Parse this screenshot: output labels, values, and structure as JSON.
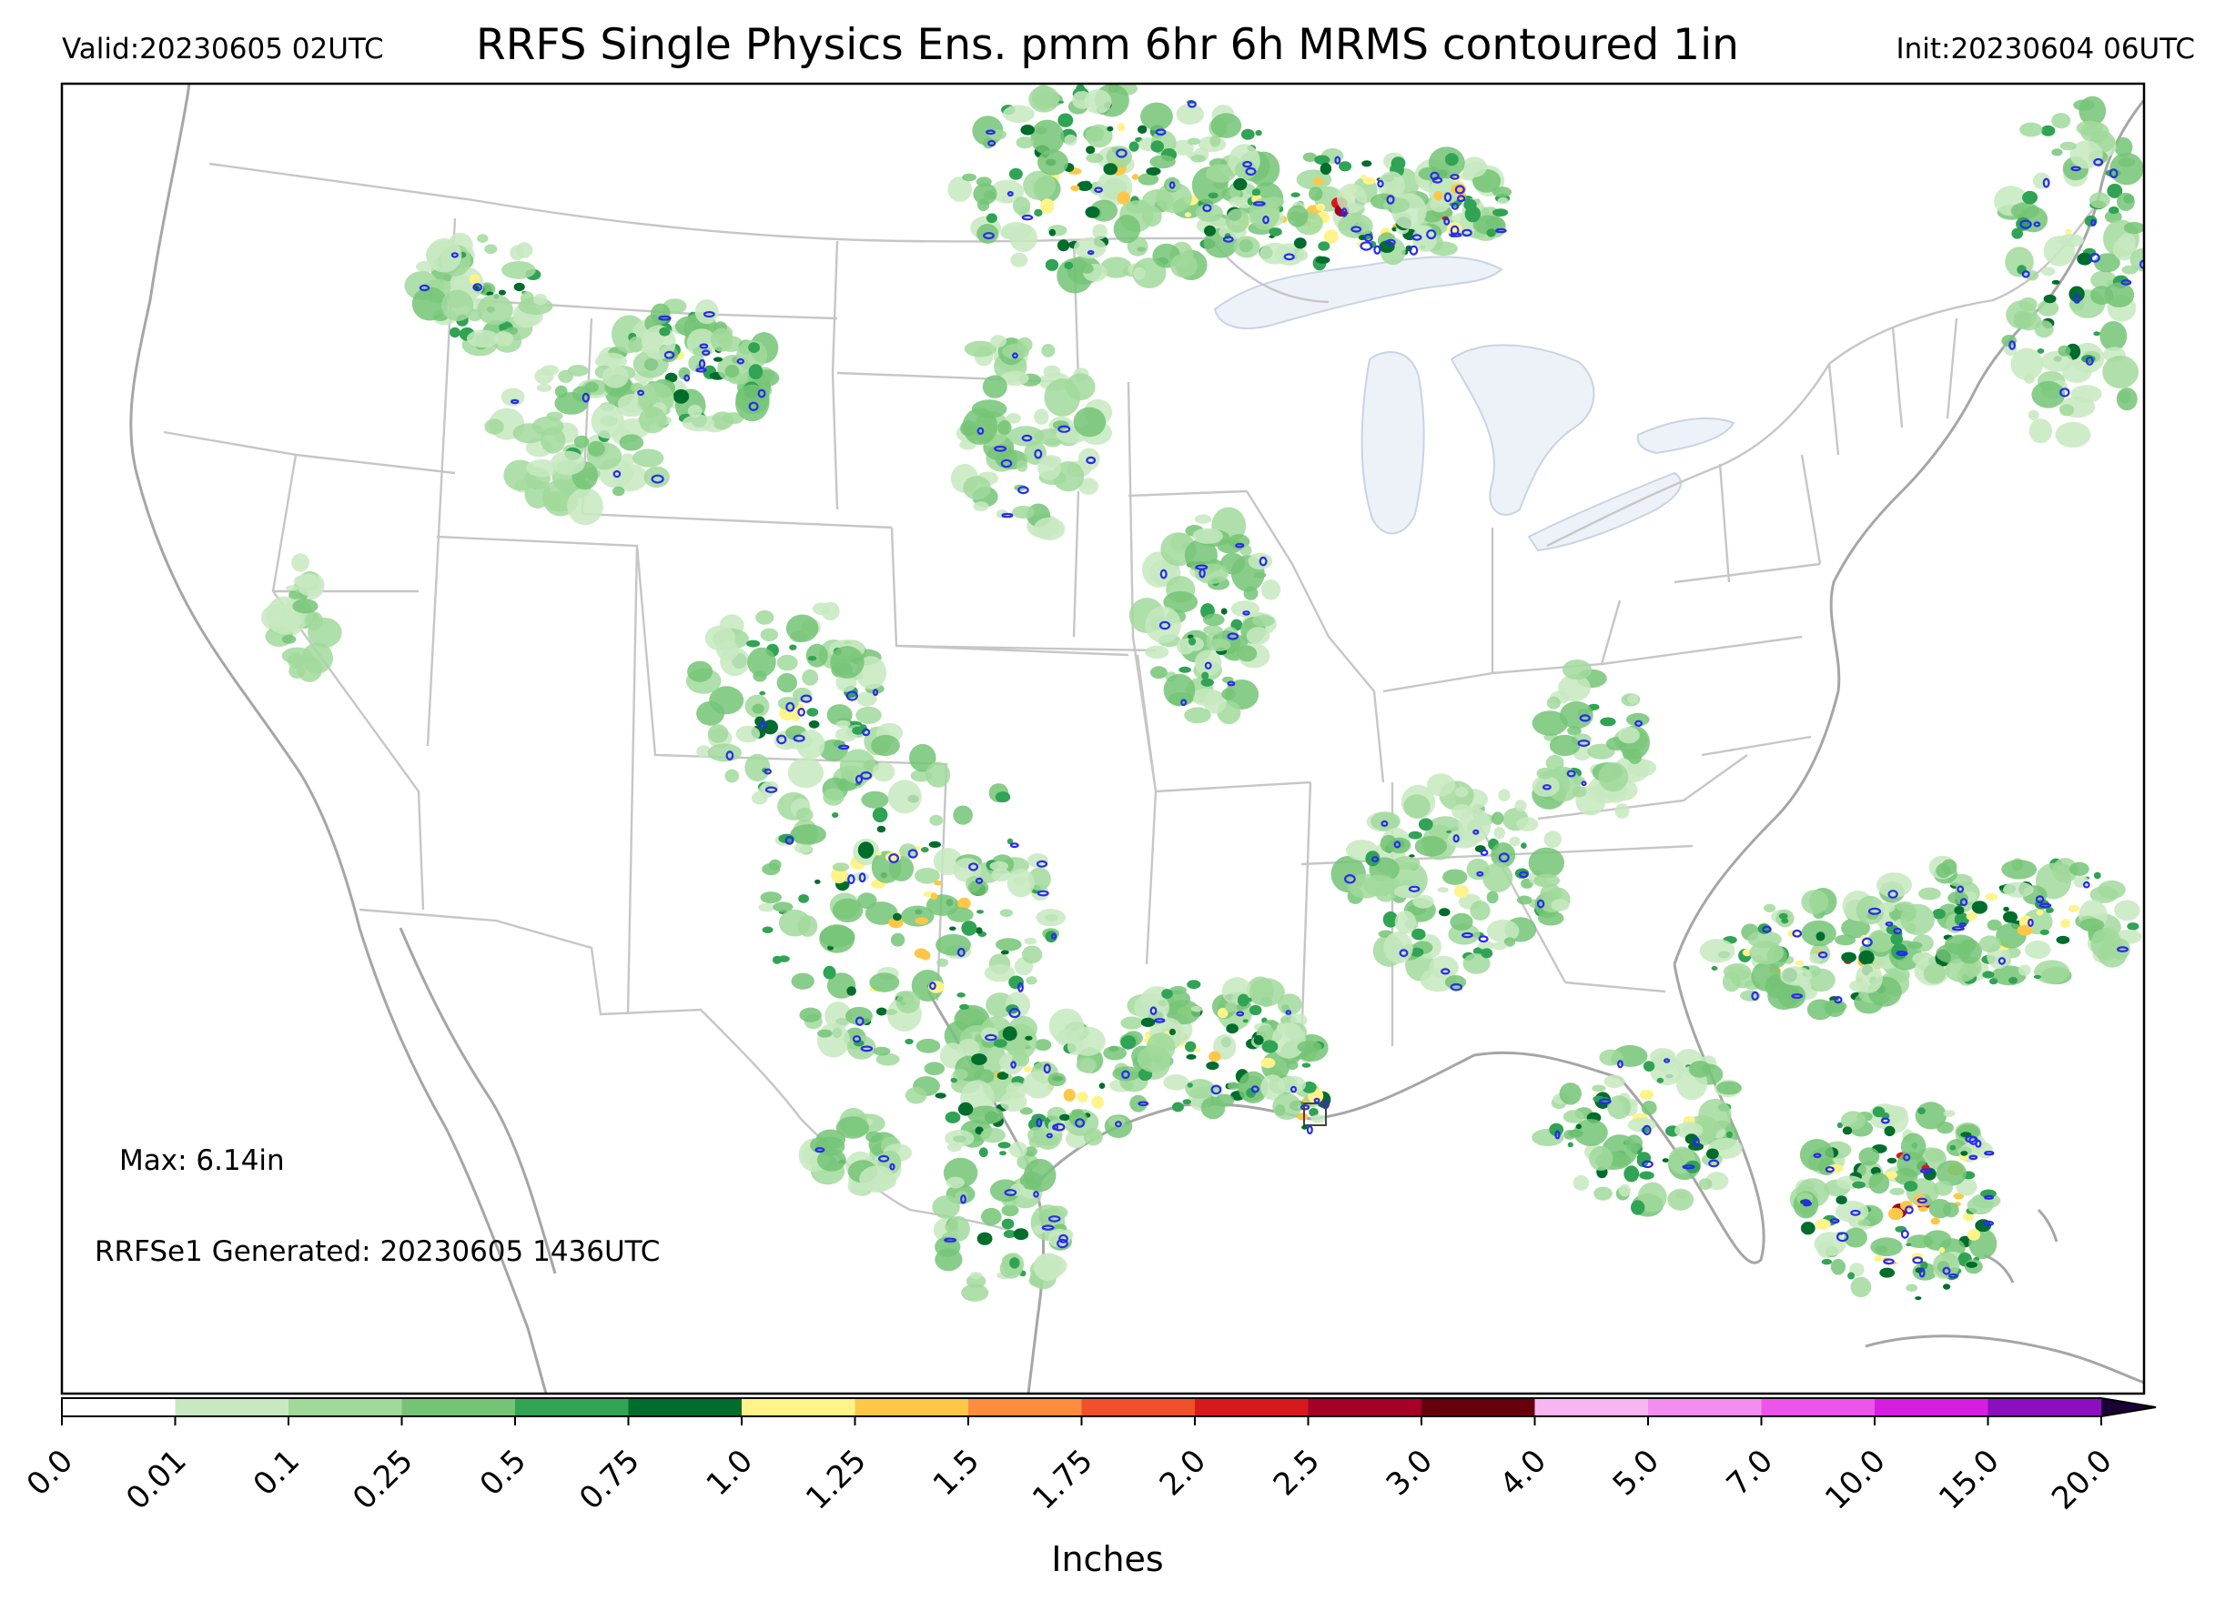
{
  "header": {
    "valid": "Valid:20230605 02UTC",
    "title": "RRFS Single Physics Ens. pmm 6hr 6h MRMS contoured 1in",
    "init": "Init:20230604 06UTC"
  },
  "notes": {
    "max": "Max: 6.14in",
    "generated": "RRFSe1 Generated: 20230605 1436UTC"
  },
  "colorbar": {
    "label": "Inches",
    "ticks": [
      "0.0",
      "0.01",
      "0.1",
      "0.25",
      "0.5",
      "0.75",
      "1.0",
      "1.25",
      "1.5",
      "1.75",
      "2.0",
      "2.5",
      "3.0",
      "4.0",
      "5.0",
      "7.0",
      "10.0",
      "15.0",
      "20.0"
    ],
    "colors": [
      "#ffffff",
      "#c7e9c0",
      "#a1d99b",
      "#74c476",
      "#31a354",
      "#006d2c",
      "#fff38a",
      "#fdc748",
      "#fd8d3c",
      "#f0502a",
      "#d7191c",
      "#a50026",
      "#67000d",
      "#f7b6f2",
      "#f38df0",
      "#ec55ea",
      "#d61ee0",
      "#8c0fbf"
    ],
    "extend_color": "#1a0033"
  },
  "map": {
    "projection": "Lambert conformal, CONUS",
    "precip_colors": [
      "#c7e9c0",
      "#a1d99b",
      "#74c476",
      "#31a354",
      "#006d2c",
      "#fff38a",
      "#fdc748",
      "#d7191c",
      "#a50026",
      "#ec55ea"
    ],
    "contour_color": "#2a2af0",
    "boundary_color": "#b5b5b5",
    "lake_color": "#edf2f9"
  }
}
